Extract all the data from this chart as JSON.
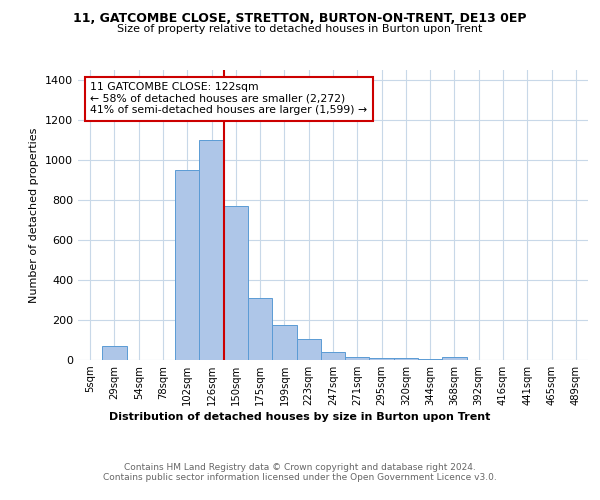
{
  "title1": "11, GATCOMBE CLOSE, STRETTON, BURTON-ON-TRENT, DE13 0EP",
  "title2": "Size of property relative to detached houses in Burton upon Trent",
  "xlabel": "Distribution of detached houses by size in Burton upon Trent",
  "ylabel": "Number of detached properties",
  "footer": "Contains HM Land Registry data © Crown copyright and database right 2024.\nContains public sector information licensed under the Open Government Licence v3.0.",
  "bar_labels": [
    "5sqm",
    "29sqm",
    "54sqm",
    "78sqm",
    "102sqm",
    "126sqm",
    "150sqm",
    "175sqm",
    "199sqm",
    "223sqm",
    "247sqm",
    "271sqm",
    "295sqm",
    "320sqm",
    "344sqm",
    "368sqm",
    "392sqm",
    "416sqm",
    "441sqm",
    "465sqm",
    "489sqm"
  ],
  "bar_values": [
    0,
    70,
    0,
    0,
    950,
    1100,
    770,
    310,
    175,
    105,
    40,
    15,
    10,
    8,
    3,
    15,
    0,
    0,
    0,
    0,
    0
  ],
  "bar_color": "#aec6e8",
  "bar_edge_color": "#5b9bd5",
  "vline_x": 5.5,
  "vline_color": "#cc0000",
  "annotation_text": "11 GATCOMBE CLOSE: 122sqm\n← 58% of detached houses are smaller (2,272)\n41% of semi-detached houses are larger (1,599) →",
  "annotation_box_color": "#ffffff",
  "annotation_box_edge": "#cc0000",
  "ylim": [
    0,
    1450
  ],
  "yticks": [
    0,
    200,
    400,
    600,
    800,
    1000,
    1200,
    1400
  ],
  "background_color": "#ffffff",
  "grid_color": "#c8d8e8"
}
